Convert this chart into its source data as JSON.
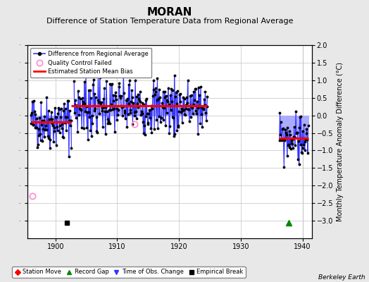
{
  "title": "MORAN",
  "subtitle": "Difference of Station Temperature Data from Regional Average",
  "ylabel": "Monthly Temperature Anomaly Difference (°C)",
  "xlabel_note": "Berkeley Earth",
  "xlim": [
    1895.5,
    1941.5
  ],
  "ylim": [
    -3.5,
    2.0
  ],
  "yticks": [
    -3.0,
    -2.5,
    -2.0,
    -1.5,
    -1.0,
    -0.5,
    0.0,
    0.5,
    1.0,
    1.5,
    2.0
  ],
  "xticks": [
    1900,
    1910,
    1920,
    1930,
    1940
  ],
  "bg_color": "#e8e8e8",
  "plot_bg_color": "#ffffff",
  "grid_color": "#cccccc",
  "line_color": "#3333ff",
  "stem_color": "#aaaaff",
  "dot_color": "#000000",
  "bias_color": "#ff0000",
  "qc_color": "#ff88cc",
  "segment1_bias": -0.18,
  "segment1_xstart": 1896.0,
  "segment1_xend": 1902.5,
  "segment2_bias": 0.27,
  "segment2_xstart": 1902.5,
  "segment2_xend": 1924.5,
  "segment3_bias": -0.65,
  "segment3_xstart": 1936.2,
  "segment3_xend": 1941.0,
  "qc1_x": 1896.3,
  "qc1_y": -2.3,
  "qc2_x": 1912.8,
  "qc2_y": -0.25,
  "empirical_break_x": 1901.8,
  "empirical_break_y": -3.05,
  "record_gap_x": 1937.8,
  "record_gap_y": -3.05,
  "title_fontsize": 11,
  "subtitle_fontsize": 8,
  "tick_fontsize": 7,
  "ylabel_fontsize": 7
}
